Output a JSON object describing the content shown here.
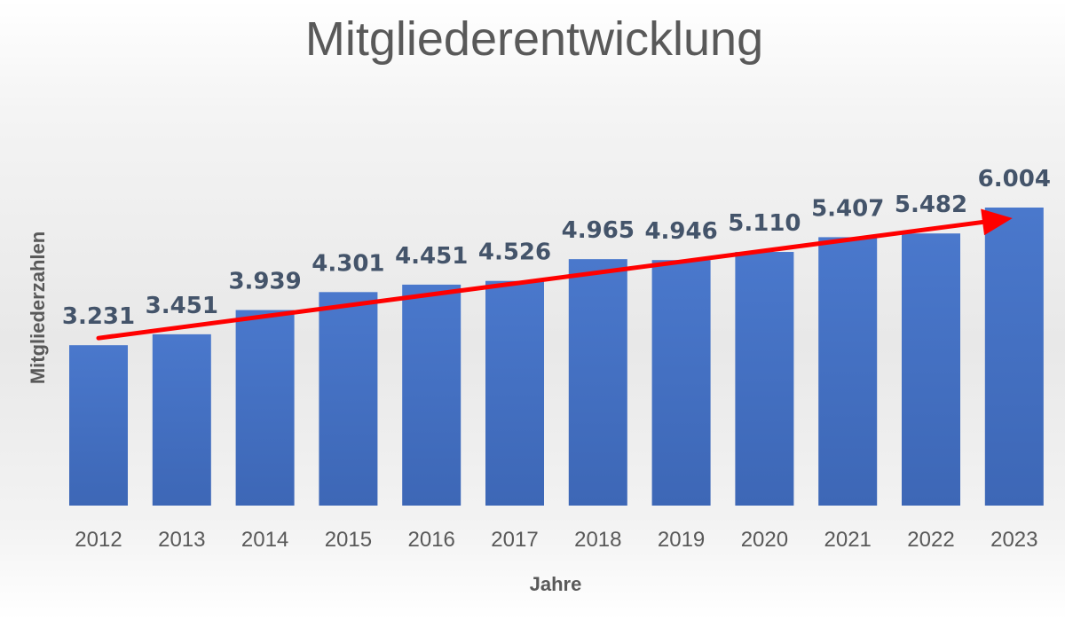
{
  "chart_data": {
    "type": "bar",
    "title": "Mitgliederentwicklung",
    "xlabel": "Jahre",
    "ylabel": "Mitgliederzahlen",
    "categories": [
      "2012",
      "2013",
      "2014",
      "2015",
      "2016",
      "2017",
      "2018",
      "2019",
      "2020",
      "2021",
      "2022",
      "2023"
    ],
    "values": [
      3231,
      3451,
      3939,
      4301,
      4451,
      4526,
      4965,
      4946,
      5110,
      5407,
      5482,
      6004
    ],
    "data_labels": [
      "3.231",
      "3.451",
      "3.939",
      "4.301",
      "4.451",
      "4.526",
      "4.965",
      "4.946",
      "5.110",
      "5.407",
      "5.482",
      "6.004"
    ],
    "ylim": [
      0,
      6004
    ],
    "grid": false,
    "legend": "none",
    "bar_color": "#4472c4",
    "trend_arrow": {
      "from_category": "2012",
      "to_category": "2023",
      "color": "#ff0000"
    }
  }
}
